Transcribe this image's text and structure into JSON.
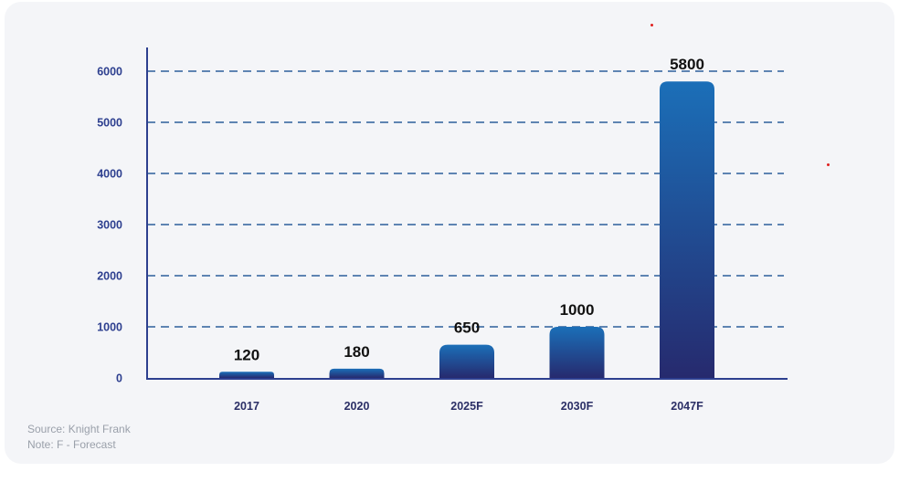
{
  "chart_data": {
    "type": "bar",
    "categories": [
      "2017",
      "2020",
      "2025F",
      "2030F",
      "2047F"
    ],
    "values": [
      120,
      180,
      650,
      1000,
      5800
    ],
    "data_labels": [
      "120",
      "180",
      "650",
      "1000",
      "5800"
    ],
    "y_ticks": [
      0,
      1000,
      2000,
      3000,
      4000,
      5000,
      6000
    ],
    "ylim": [
      0,
      6000
    ],
    "grid": "dashed horizontal",
    "title": "",
    "xlabel": "",
    "ylabel": "",
    "colors": {
      "bar_top": "#1b6fb8",
      "bar_bottom": "#262a6e",
      "grid": "#2d5f9a",
      "axis": "#2d3f8f",
      "tick_label": "#2d3f8f",
      "data_label": "#111111",
      "category_label": "#2b2f66"
    }
  },
  "footer": {
    "source": "Source: Knight Frank",
    "note": "Note:  F - Forecast"
  }
}
